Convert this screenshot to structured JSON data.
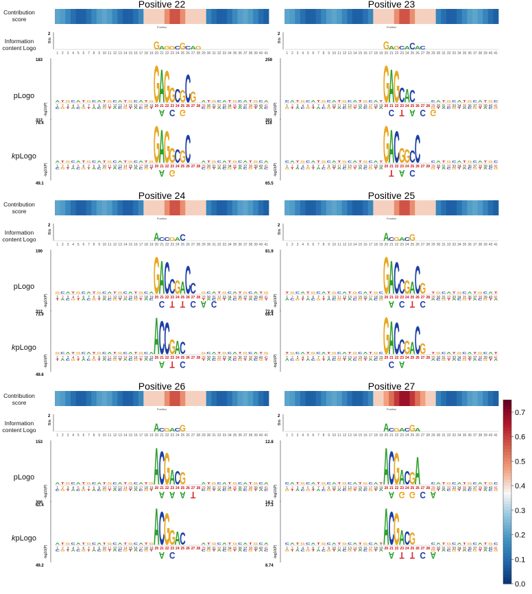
{
  "row_labels": {
    "contribution": "Contribution score",
    "info": "Information content Logo",
    "plogo": "pLogo",
    "kplogo_k": "k",
    "kplogo_rest": "pLogo"
  },
  "axis_labels": {
    "bits": "Bits",
    "log": "-log10(P)",
    "position": "Position"
  },
  "colorbar": {
    "ticks": [
      "0.7",
      "0.6",
      "0.5",
      "0.4",
      "0.3",
      "0.2",
      "0.1",
      "0.0"
    ],
    "range": [
      0,
      0.75
    ],
    "colors": [
      "#08306b",
      "#2166ac",
      "#4393c3",
      "#92c5de",
      "#f7f7f7",
      "#f4a582",
      "#d6604d",
      "#b2182b",
      "#67001f"
    ]
  },
  "chart_data": [
    {
      "type": "sequence-logo-panel",
      "title": "Positive 22",
      "positions": 41,
      "peak": [
        20,
        27
      ],
      "bits_max": "2",
      "info_seq": "GAGGCGCAG",
      "plogo": {
        "ymax": "183",
        "ymin": "76.4",
        "above": [
          "G",
          "A",
          "G",
          "G",
          "C",
          "G",
          "C",
          "G"
        ],
        "below": [
          "A",
          "C",
          "G"
        ]
      },
      "kplogo": {
        "ymax": "312",
        "ymin": "49.1",
        "above": [
          "G",
          "A",
          "G",
          "G",
          "C",
          "G",
          "C"
        ],
        "below": [
          "A",
          "G"
        ]
      }
    },
    {
      "type": "sequence-logo-panel",
      "title": "Positive 23",
      "positions": 41,
      "peak": [
        20,
        27
      ],
      "bits_max": "2",
      "info_seq": "GAGCACAC",
      "plogo": {
        "ymax": "259",
        "ymin": "116",
        "above": [
          "G",
          "A",
          "G",
          "C",
          "A",
          "C"
        ],
        "below": [
          "C",
          "T",
          "A",
          "C",
          "G"
        ]
      },
      "kplogo": {
        "ymax": "301",
        "ymin": "65.5",
        "above": [
          "G",
          "A",
          "C",
          "G",
          "G",
          "C",
          "C"
        ],
        "below": [
          "T",
          "A",
          "C"
        ]
      }
    },
    {
      "type": "sequence-logo-panel",
      "title": "Positive 24",
      "positions": 41,
      "peak": [
        20,
        27
      ],
      "bits_max": "2",
      "info_seq": "ACCGAC",
      "plogo": {
        "ymax": "190",
        "ymin": "73.9",
        "above": [
          "G",
          "A",
          "C",
          "C",
          "G",
          "A",
          "C",
          "C"
        ],
        "below": [
          "C",
          "T",
          "T",
          "C",
          "A",
          "C"
        ]
      },
      "kplogo": {
        "ymax": "312",
        "ymin": "49.6",
        "above": [
          "A",
          "C",
          "C",
          "G",
          "A",
          "C"
        ],
        "below": [
          "A",
          "T",
          "C"
        ]
      }
    },
    {
      "type": "sequence-logo-panel",
      "title": "Positive 25",
      "positions": 41,
      "peak": [
        20,
        27
      ],
      "bits_max": "2",
      "info_seq": "ACGACG",
      "plogo": {
        "ymax": "81.9",
        "ymin": "69.4",
        "above": [
          "G",
          "A",
          "C",
          "C",
          "G",
          "A",
          "C",
          "G"
        ],
        "below": [
          "A",
          "C",
          "T",
          "C"
        ]
      },
      "kplogo": {
        "ymax": "72.8",
        "ymin": "",
        "above": [
          "G",
          "A",
          "C",
          "C",
          "G",
          "A",
          "C",
          "G"
        ],
        "below": [
          "C",
          "A"
        ]
      }
    },
    {
      "type": "sequence-logo-panel",
      "title": "Positive 26",
      "positions": 41,
      "peak": [
        20,
        27
      ],
      "bits_max": "2",
      "info_seq": "ACGACG",
      "plogo": {
        "ymax": "153",
        "ymin": "62.4",
        "above": [
          "A",
          "C",
          "G",
          "A",
          "C",
          "G"
        ],
        "below": [
          "A",
          "A",
          "A",
          "T"
        ]
      },
      "kplogo": {
        "ymax": "300",
        "ymin": "49.2",
        "above": [
          "A",
          "C",
          "G",
          "G",
          "A",
          "C"
        ],
        "below": [
          "A",
          "C"
        ]
      }
    },
    {
      "type": "sequence-logo-panel",
      "title": "Positive 27",
      "positions": 41,
      "peak": [
        20,
        27
      ],
      "bits_max": "2",
      "info_seq": "ACGACGA",
      "plogo": {
        "ymax": "12.8",
        "ymin": "17.3",
        "above": [
          "A",
          "C",
          "G",
          "A",
          "C",
          "G",
          "A"
        ],
        "below": [
          "A",
          "G",
          "G",
          "C",
          "A"
        ]
      },
      "kplogo": {
        "ymax": "14.2",
        "ymin": "8.74",
        "above": [
          "A",
          "C",
          "G",
          "A",
          "C",
          "G"
        ],
        "below": [
          "A",
          "T",
          "T",
          "C",
          "A"
        ]
      }
    }
  ]
}
